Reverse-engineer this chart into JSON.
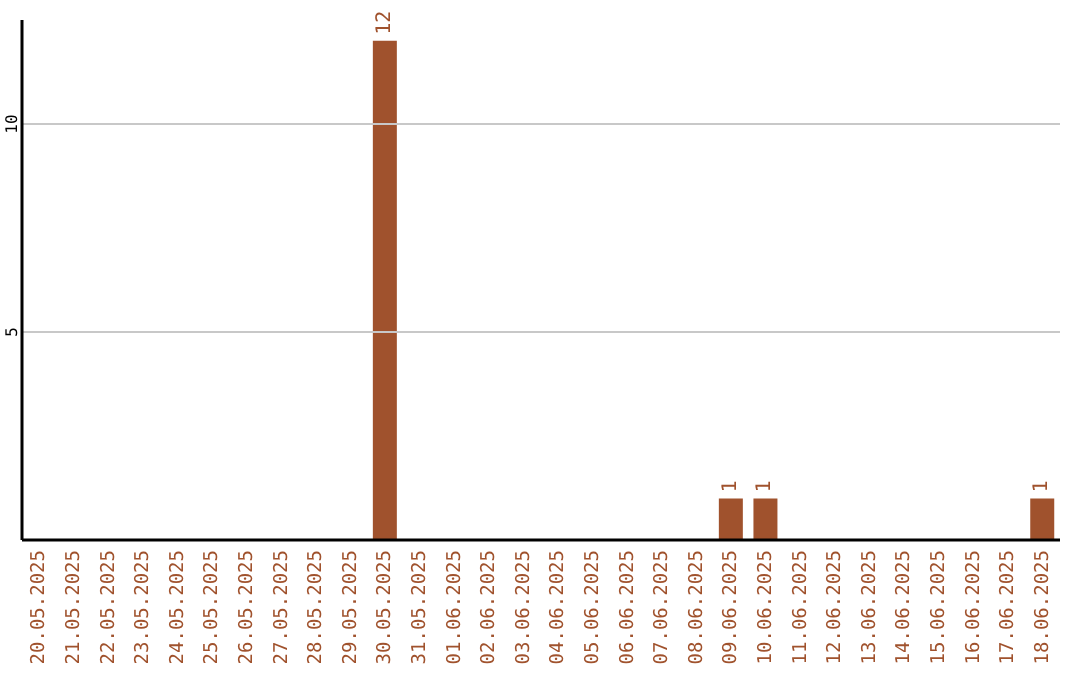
{
  "chart_data": {
    "type": "bar",
    "categories": [
      "20.05.2025",
      "21.05.2025",
      "22.05.2025",
      "23.05.2025",
      "24.05.2025",
      "25.05.2025",
      "26.05.2025",
      "27.05.2025",
      "28.05.2025",
      "29.05.2025",
      "30.05.2025",
      "31.05.2025",
      "01.06.2025",
      "02.06.2025",
      "03.06.2025",
      "04.06.2025",
      "05.06.2025",
      "06.06.2025",
      "07.06.2025",
      "08.06.2025",
      "09.06.2025",
      "10.06.2025",
      "11.06.2025",
      "12.06.2025",
      "13.06.2025",
      "14.06.2025",
      "15.06.2025",
      "16.06.2025",
      "17.06.2025",
      "18.06.2025"
    ],
    "values": [
      0,
      0,
      0,
      0,
      0,
      0,
      0,
      0,
      0,
      0,
      12,
      0,
      0,
      0,
      0,
      0,
      0,
      0,
      0,
      0,
      1,
      1,
      0,
      0,
      0,
      0,
      0,
      0,
      0,
      1
    ],
    "value_labels": [
      null,
      null,
      null,
      null,
      null,
      null,
      null,
      null,
      null,
      null,
      "12",
      null,
      null,
      null,
      null,
      null,
      null,
      null,
      null,
      null,
      "1",
      "1",
      null,
      null,
      null,
      null,
      null,
      null,
      null,
      "1"
    ],
    "color": "#a0522d",
    "ylim": [
      0,
      12.5
    ],
    "yticks": [
      5,
      10
    ],
    "grid": "y"
  }
}
